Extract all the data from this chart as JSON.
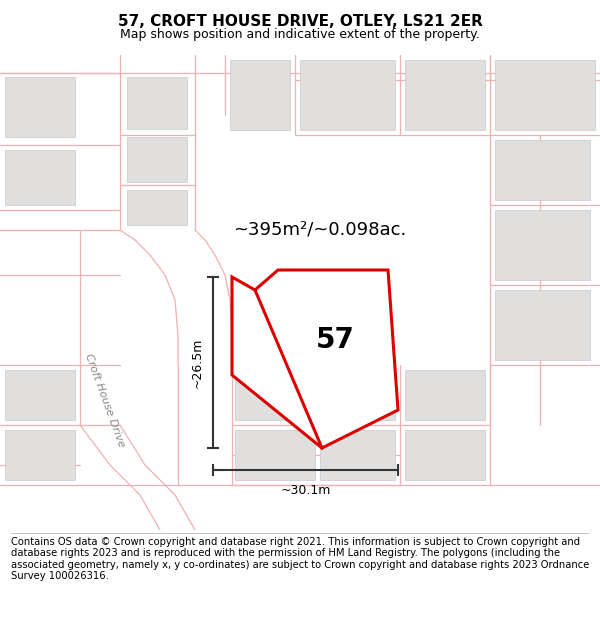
{
  "title": "57, CROFT HOUSE DRIVE, OTLEY, LS21 2ER",
  "subtitle": "Map shows position and indicative extent of the property.",
  "footer": "Contains OS data © Crown copyright and database right 2021. This information is subject to Crown copyright and database rights 2023 and is reproduced with the permission of HM Land Registry. The polygons (including the associated geometry, namely x, y co-ordinates) are subject to Crown copyright and database rights 2023 Ordnance Survey 100026316.",
  "area_label": "~395m²/~0.098ac.",
  "property_label": "57",
  "road_label": "Croft House Drive",
  "dim_vertical": "~26.5m",
  "dim_horizontal": "~30.1m",
  "map_bg": "#f7f6f5",
  "road_color": "#f0b0b0",
  "road_lw": 0.9,
  "building_color": "#e0dfde",
  "building_outline": "#c8c8c8",
  "property_fill": "white",
  "property_edge": "#dd0000",
  "property_lw": 2.2,
  "dim_color": "#333333",
  "title_fontsize": 11,
  "subtitle_fontsize": 9,
  "footer_fontsize": 7.2
}
